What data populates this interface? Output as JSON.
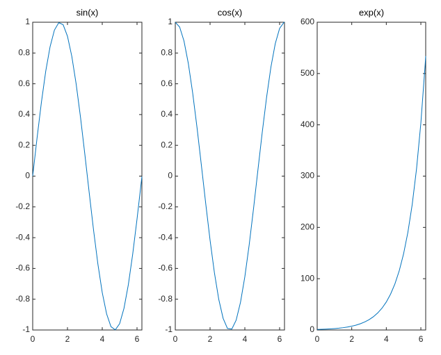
{
  "chart_data": [
    {
      "type": "line",
      "title": "sin(x)",
      "color": "#0072bd",
      "x": [
        0,
        0.25,
        0.5,
        0.75,
        1,
        1.25,
        1.5,
        1.75,
        2,
        2.25,
        2.5,
        2.75,
        3,
        3.25,
        3.5,
        3.75,
        4,
        4.25,
        4.5,
        4.75,
        5,
        5.25,
        5.5,
        5.75,
        6,
        6.25,
        6.28
      ],
      "values": [
        0,
        0.247,
        0.479,
        0.682,
        0.841,
        0.949,
        0.997,
        0.984,
        0.909,
        0.778,
        0.598,
        0.382,
        0.141,
        -0.108,
        -0.351,
        -0.572,
        -0.757,
        -0.895,
        -0.978,
        -0.999,
        -0.959,
        -0.859,
        -0.706,
        -0.508,
        -0.279,
        -0.033,
        -0.003
      ],
      "xlim": [
        0,
        6.28
      ],
      "xticks": [
        0,
        2,
        4,
        6
      ],
      "ylim": [
        -1,
        1
      ],
      "yticks": [
        -1,
        -0.8,
        -0.6,
        -0.4,
        -0.2,
        0,
        0.2,
        0.4,
        0.6,
        0.8,
        1
      ]
    },
    {
      "type": "line",
      "title": "cos(x)",
      "color": "#0072bd",
      "x": [
        0,
        0.25,
        0.5,
        0.75,
        1,
        1.25,
        1.5,
        1.75,
        2,
        2.25,
        2.5,
        2.75,
        3,
        3.25,
        3.5,
        3.75,
        4,
        4.25,
        4.5,
        4.75,
        5,
        5.25,
        5.5,
        5.75,
        6,
        6.25,
        6.28
      ],
      "values": [
        1,
        0.969,
        0.878,
        0.732,
        0.54,
        0.315,
        0.071,
        -0.178,
        -0.416,
        -0.628,
        -0.801,
        -0.924,
        -0.99,
        -0.994,
        -0.936,
        -0.82,
        -0.654,
        -0.446,
        -0.211,
        0.038,
        0.284,
        0.512,
        0.709,
        0.861,
        0.96,
        0.999,
        1
      ],
      "xlim": [
        0,
        6.28
      ],
      "xticks": [
        0,
        2,
        4,
        6
      ],
      "ylim": [
        -1,
        1
      ],
      "yticks": [
        -1,
        -0.8,
        -0.6,
        -0.4,
        -0.2,
        0,
        0.2,
        0.4,
        0.6,
        0.8,
        1
      ]
    },
    {
      "type": "line",
      "title": "exp(x)",
      "color": "#0072bd",
      "x": [
        0,
        0.25,
        0.5,
        0.75,
        1,
        1.25,
        1.5,
        1.75,
        2,
        2.25,
        2.5,
        2.75,
        3,
        3.25,
        3.5,
        3.75,
        4,
        4.25,
        4.5,
        4.75,
        5,
        5.25,
        5.5,
        5.75,
        6,
        6.25,
        6.28
      ],
      "values": [
        1,
        1.28,
        1.65,
        2.12,
        2.72,
        3.49,
        4.48,
        5.75,
        7.39,
        9.49,
        12.18,
        15.64,
        20.09,
        25.79,
        33.12,
        42.52,
        54.6,
        70.11,
        90.02,
        115.58,
        148.41,
        190.57,
        244.69,
        314.19,
        403.43,
        518.01,
        534
      ],
      "xlim": [
        0,
        6.28
      ],
      "xticks": [
        0,
        2,
        4,
        6
      ],
      "ylim": [
        0,
        600
      ],
      "yticks": [
        0,
        100,
        200,
        300,
        400,
        500,
        600
      ]
    }
  ]
}
